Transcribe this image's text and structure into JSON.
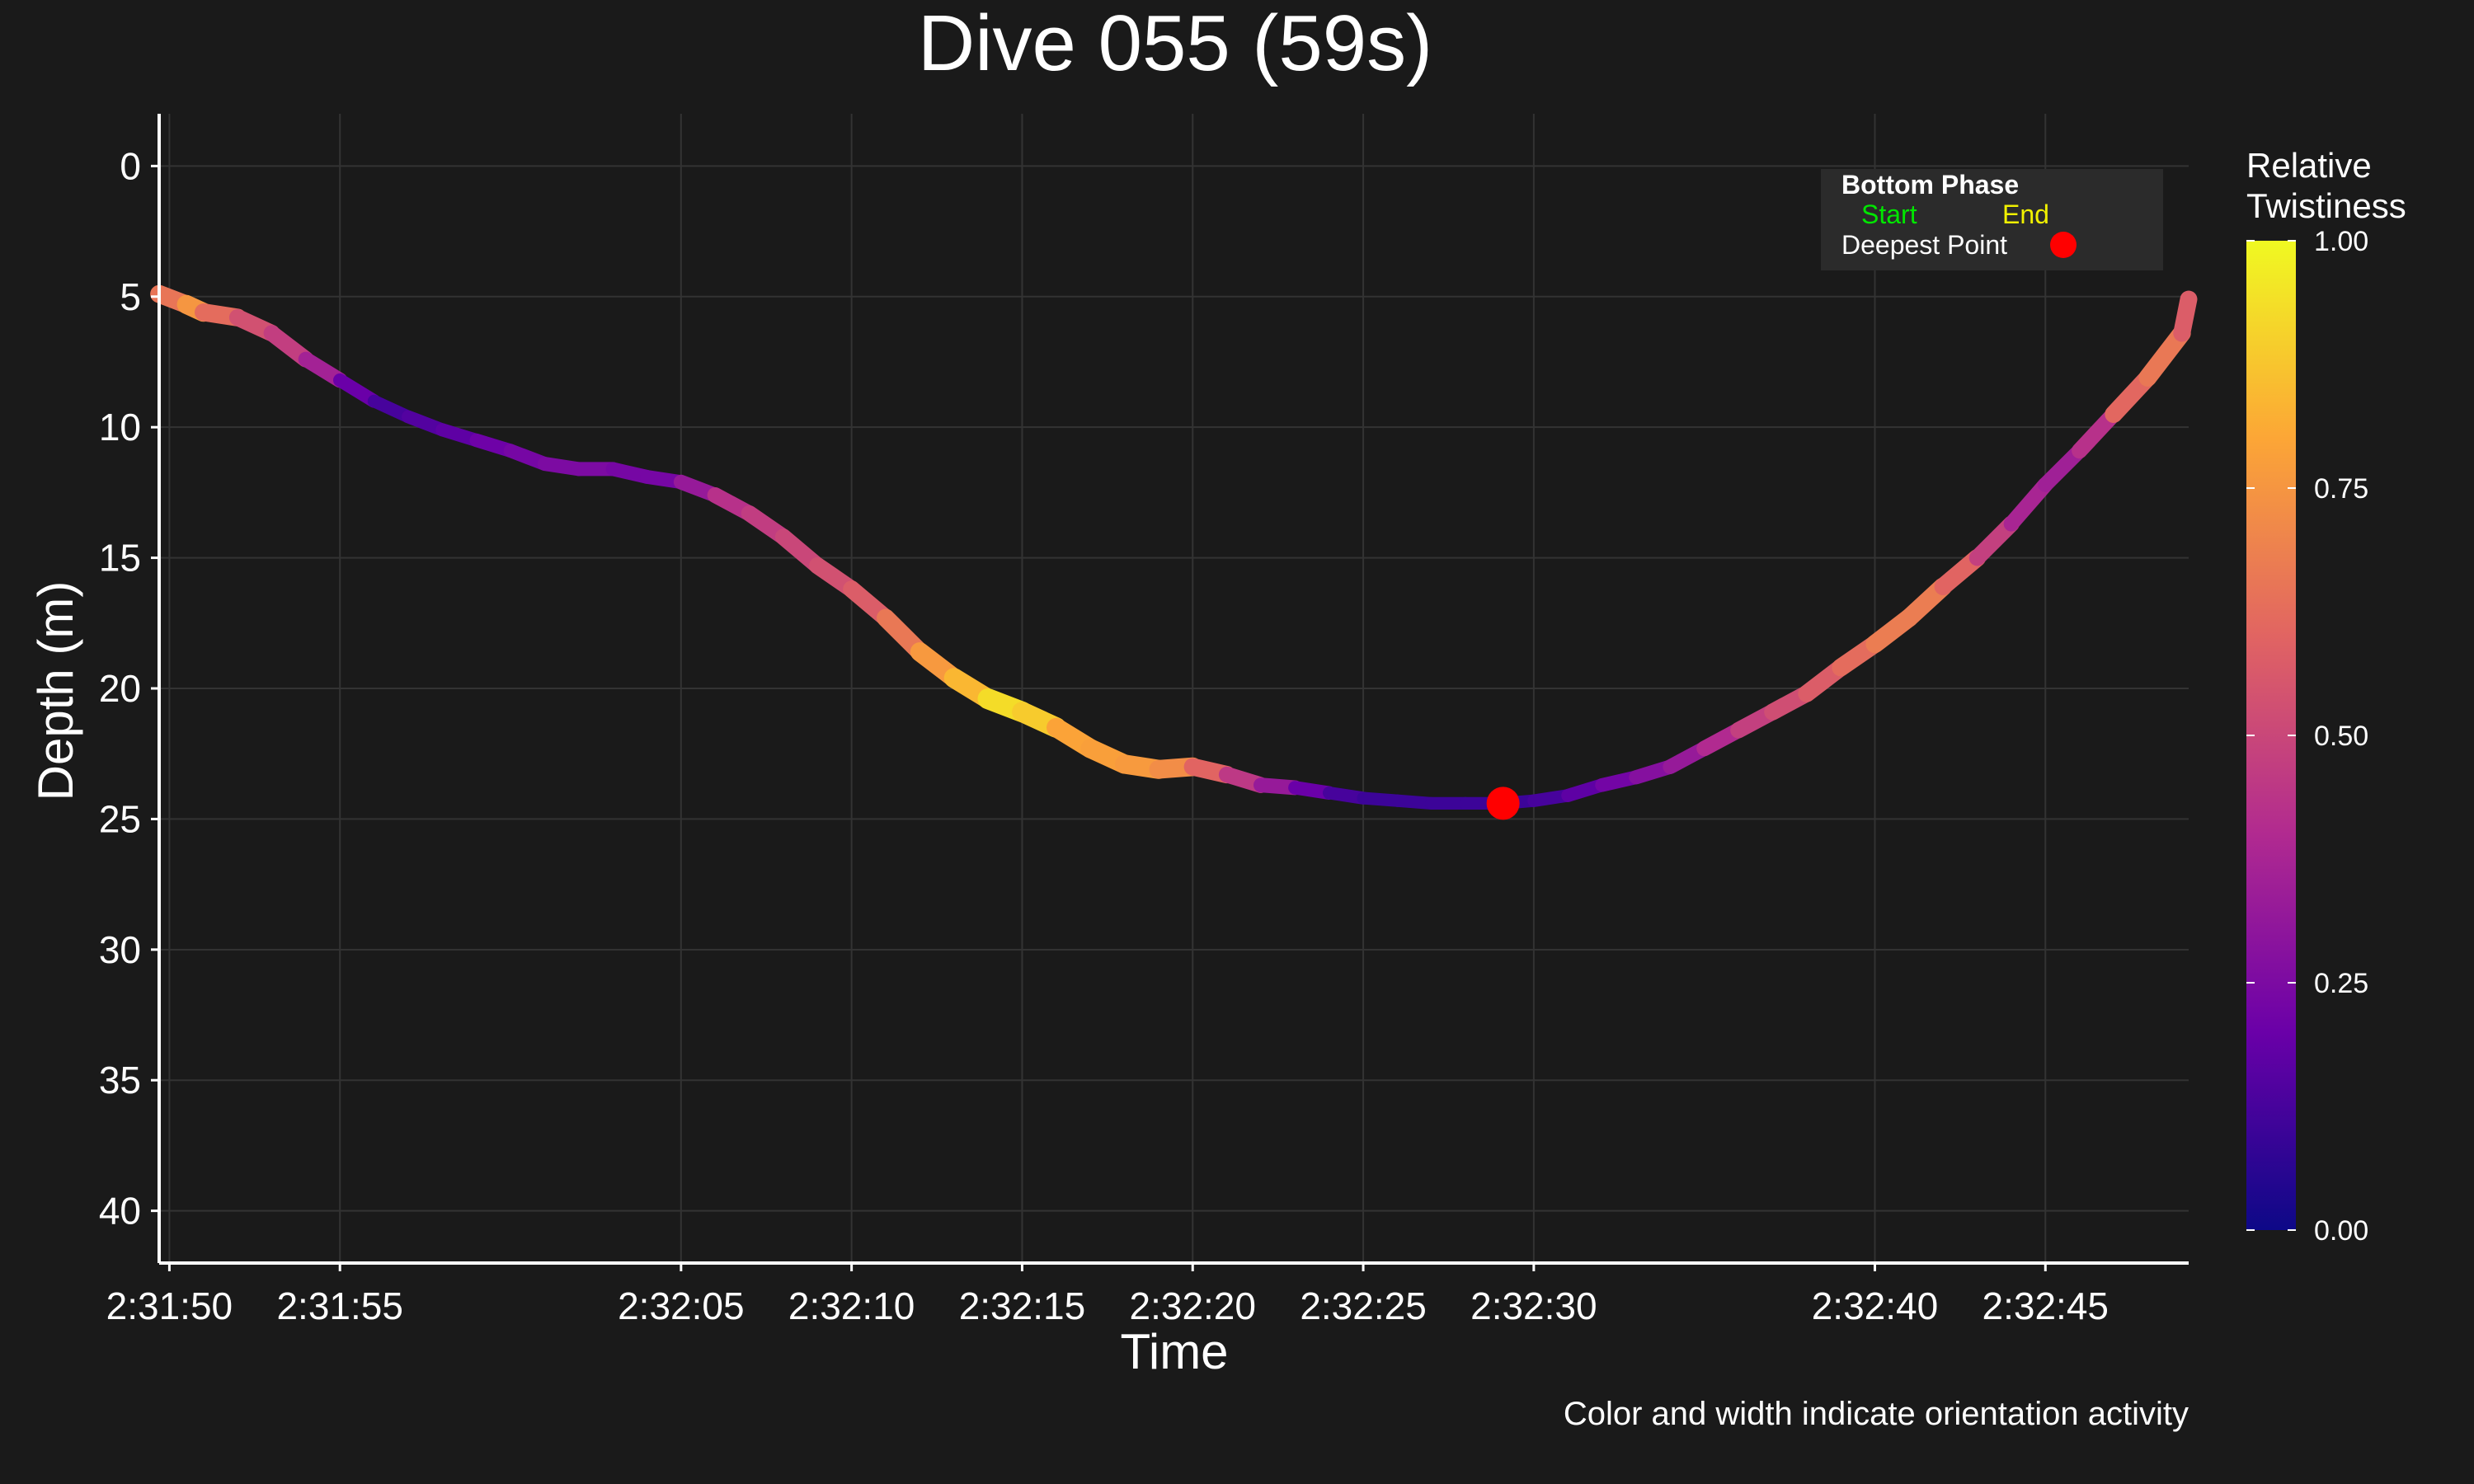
{
  "chart_data": {
    "type": "line",
    "title": "Dive 055 (59s)",
    "xlabel": "Time",
    "ylabel": "Depth (m)",
    "caption": "Color and width indicate orientation activity",
    "x_ticks": [
      "2:31:50",
      "2:31:55",
      "2:32:05",
      "2:32:10",
      "2:32:15",
      "2:32:20",
      "2:32:25",
      "2:32:30",
      "2:32:40",
      "2:32:45"
    ],
    "x_tick_seconds": [
      0,
      5,
      15,
      20,
      25,
      30,
      35,
      40,
      50,
      55
    ],
    "x_range_seconds": [
      -0.3,
      59.2
    ],
    "y_ticks": [
      0,
      5,
      10,
      15,
      20,
      25,
      30,
      35,
      40
    ],
    "ylim": [
      -2,
      42
    ],
    "y_inverted": true,
    "grid": true,
    "legend": {
      "title": "Bottom Phase",
      "start_label": "Start",
      "end_label": "End",
      "deepest_label": "Deepest Point",
      "placement": "top-right"
    },
    "colorbar": {
      "title_line1": "Relative",
      "title_line2": "Twistiness",
      "ticks": [
        "0.00",
        "0.25",
        "0.50",
        "0.75",
        "1.00"
      ],
      "colors": [
        "#0d0887",
        "#6a00a8",
        "#b12a90",
        "#e16462",
        "#fca636",
        "#f0f921"
      ]
    },
    "deepest_point": {
      "t": 39.1,
      "depth": 24.4
    },
    "series": [
      {
        "points": [
          [
            -0.3,
            4.9,
            0.5
          ],
          [
            0.5,
            5.3,
            0.8
          ],
          [
            1.0,
            5.6,
            0.7
          ],
          [
            2.0,
            5.8,
            0.55
          ],
          [
            3.0,
            6.4,
            0.52
          ],
          [
            4.0,
            7.4,
            0.42
          ],
          [
            5.0,
            8.2,
            0.3
          ],
          [
            6.0,
            9.0,
            0.1
          ],
          [
            7.0,
            9.6,
            0.15
          ],
          [
            8.0,
            10.1,
            0.15
          ],
          [
            9.0,
            10.5,
            0.2
          ],
          [
            10.0,
            10.9,
            0.22
          ],
          [
            11.0,
            11.4,
            0.25
          ],
          [
            12.0,
            11.6,
            0.25
          ],
          [
            13.0,
            11.6,
            0.25
          ],
          [
            14.0,
            11.9,
            0.22
          ],
          [
            15.0,
            12.1,
            0.25
          ],
          [
            16.0,
            12.6,
            0.4
          ],
          [
            17.0,
            13.3,
            0.45
          ],
          [
            18.0,
            14.2,
            0.48
          ],
          [
            19.0,
            15.3,
            0.52
          ],
          [
            20.0,
            16.2,
            0.55
          ],
          [
            21.0,
            17.3,
            0.6
          ],
          [
            22.0,
            18.6,
            0.72
          ],
          [
            23.0,
            19.6,
            0.8
          ],
          [
            24.0,
            20.4,
            0.88
          ],
          [
            25.0,
            20.9,
            0.98
          ],
          [
            26.0,
            21.5,
            0.8
          ],
          [
            27.0,
            22.3,
            0.78
          ],
          [
            28.0,
            22.9,
            0.78
          ],
          [
            29.0,
            23.1,
            0.75
          ],
          [
            30.0,
            23.0,
            0.7
          ],
          [
            31.0,
            23.3,
            0.5
          ],
          [
            32.0,
            23.7,
            0.4
          ],
          [
            33.0,
            23.8,
            0.25
          ],
          [
            34.0,
            24.0,
            0.15
          ],
          [
            35.0,
            24.2,
            0.1
          ],
          [
            36.0,
            24.3,
            0.1
          ],
          [
            37.0,
            24.4,
            0.1
          ],
          [
            38.0,
            24.4,
            0.1
          ],
          [
            39.1,
            24.4,
            0.1
          ],
          [
            40.0,
            24.3,
            0.1
          ],
          [
            41.0,
            24.1,
            0.15
          ],
          [
            42.0,
            23.7,
            0.2
          ],
          [
            43.0,
            23.4,
            0.25
          ],
          [
            44.0,
            23.0,
            0.3
          ],
          [
            45.0,
            22.3,
            0.35
          ],
          [
            46.0,
            21.6,
            0.45
          ],
          [
            47.0,
            20.9,
            0.5
          ],
          [
            48.0,
            20.2,
            0.55
          ],
          [
            49.0,
            19.2,
            0.6
          ],
          [
            50.0,
            18.3,
            0.65
          ],
          [
            51.0,
            17.3,
            0.7
          ],
          [
            52.0,
            16.1,
            0.65
          ],
          [
            53.0,
            15.0,
            0.55
          ],
          [
            54.0,
            13.7,
            0.4
          ],
          [
            55.0,
            12.2,
            0.35
          ],
          [
            56.0,
            10.9,
            0.35
          ],
          [
            57.0,
            9.5,
            0.5
          ],
          [
            58.0,
            8.1,
            0.72
          ],
          [
            59.0,
            6.4,
            0.6
          ],
          [
            59.2,
            5.1,
            0.55
          ]
        ]
      }
    ]
  }
}
